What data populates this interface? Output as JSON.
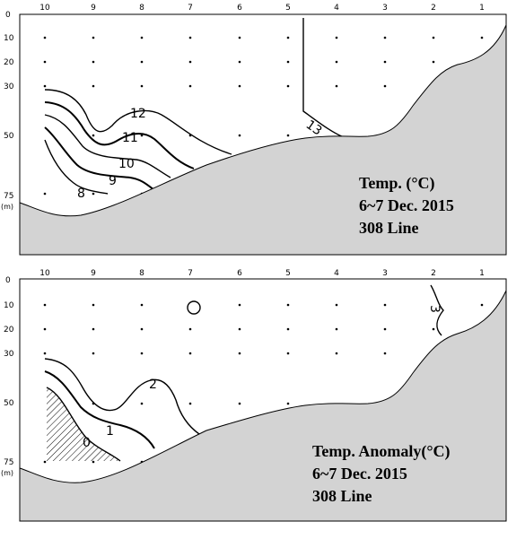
{
  "chart_data": [
    {
      "type": "contour",
      "stations": [
        "10",
        "9",
        "8",
        "7",
        "6",
        "5",
        "4",
        "3",
        "2",
        "1"
      ],
      "depth_ticks": [
        "0",
        "10",
        "20",
        "30",
        "50",
        "75"
      ],
      "depth_unit": "(m)",
      "contour_labels": [
        "12",
        "11",
        "10",
        "9",
        "8",
        "13"
      ],
      "annotation": [
        "Temp. (°C)",
        "6~7  Dec. 2015",
        "308 Line"
      ],
      "seafloor_color": "#d3d3d3"
    },
    {
      "type": "contour",
      "stations": [
        "10",
        "9",
        "8",
        "7",
        "6",
        "5",
        "4",
        "3",
        "2",
        "1"
      ],
      "depth_ticks": [
        "0",
        "10",
        "20",
        "30",
        "50",
        "75"
      ],
      "depth_unit": "(m)",
      "contour_labels": [
        "2",
        "1",
        "0",
        "3"
      ],
      "annotation": [
        "Temp. Anomaly(°C)",
        "6~7  Dec. 2015",
        "308 Line"
      ],
      "seafloor_color": "#d3d3d3"
    }
  ]
}
